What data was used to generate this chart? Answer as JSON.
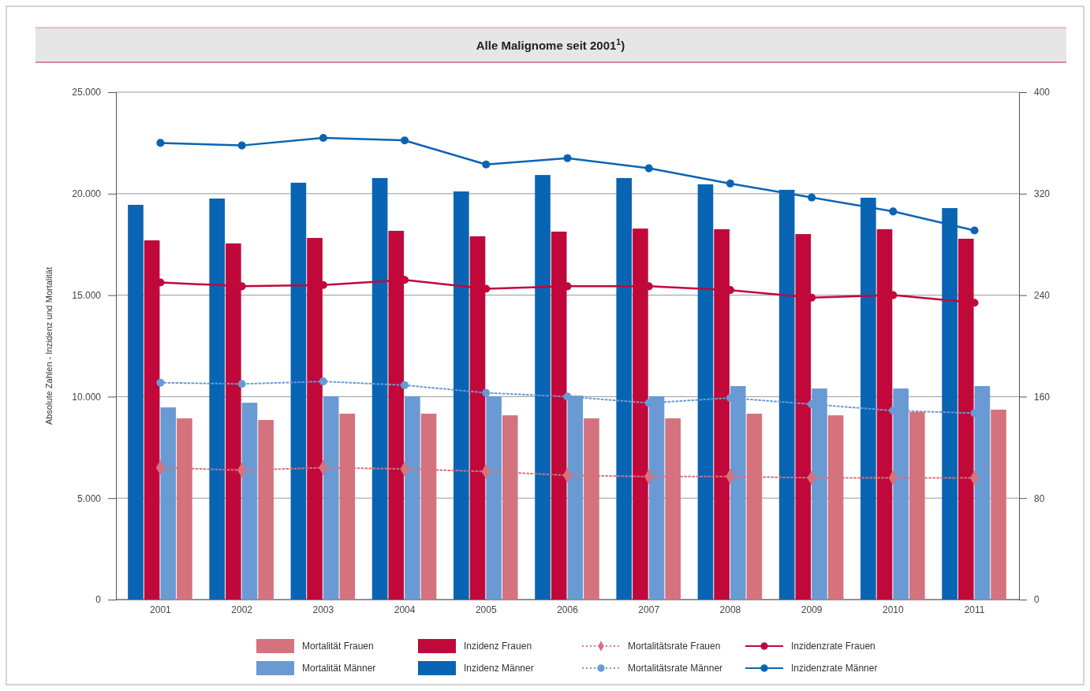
{
  "chart_data": {
    "type": "bar",
    "title": "Alle Malignome seit 2001$^{1}$)",
    "ylabel": "Absolute  Zahlen - Inzidenz und Mortalität",
    "categories": [
      "2001",
      "2002",
      "2003",
      "2004",
      "2005",
      "2006",
      "2007",
      "2008",
      "2009",
      "2010",
      "2011"
    ],
    "series": [
      {
        "name": "Inzidenz Männer",
        "color": "#0a64b4",
        "values": [
          19450,
          19760,
          20540,
          20770,
          20110,
          20920,
          20770,
          20460,
          20190,
          19800,
          19290
        ]
      },
      {
        "name": "Inzidenz Frauen",
        "color": "#c0093a",
        "values": [
          17700,
          17550,
          17820,
          18170,
          17900,
          18130,
          18280,
          18250,
          18010,
          18250,
          17780
        ]
      },
      {
        "name": "Mortalität Männer",
        "color": "#6a9ad4",
        "values": [
          9470,
          9700,
          10020,
          10020,
          10020,
          10050,
          10020,
          10520,
          10400,
          10400,
          10520
        ]
      },
      {
        "name": "Mortalität Frauen",
        "color": "#d4737e",
        "values": [
          8930,
          8850,
          9160,
          9160,
          9080,
          8930,
          8930,
          9160,
          9080,
          9240,
          9360
        ]
      },
      {
        "name": "Inzidenzrate Männer",
        "type": "line",
        "axis": "y2",
        "color": "#0a64b4",
        "marker": "circle",
        "line_style": "solid",
        "values": [
          360,
          358,
          364,
          362,
          343,
          348,
          340,
          328,
          317,
          306,
          291
        ]
      },
      {
        "name": "Inzidenzrate Frauen",
        "type": "line",
        "axis": "y2",
        "color": "#c0093a",
        "marker": "circle",
        "line_style": "solid",
        "values": [
          250,
          247,
          248,
          252,
          245,
          247,
          247,
          244,
          238,
          240,
          234
        ]
      },
      {
        "name": "Mortalitätsrate Männer",
        "type": "line",
        "axis": "y2",
        "color": "#6a9ad4",
        "marker": "circle",
        "line_style": "dotted",
        "values": [
          171,
          170,
          172,
          169,
          163,
          160,
          155,
          159,
          154,
          149,
          147
        ]
      },
      {
        "name": "Mortalitätsrate Frauen",
        "type": "line",
        "axis": "y2",
        "color": "#d4737e",
        "marker": "diamond",
        "line_style": "dotted",
        "values": [
          104,
          102,
          104,
          103,
          101,
          98,
          97,
          97,
          96,
          96,
          96
        ]
      }
    ],
    "ylim": [
      0,
      25000
    ],
    "yticks": [
      {
        "value": 0,
        "label": "0"
      },
      {
        "value": 5000,
        "label": "5.000"
      },
      {
        "value": 10000,
        "label": "10.000"
      },
      {
        "value": 15000,
        "label": "15.000"
      },
      {
        "value": 20000,
        "label": "20.000"
      },
      {
        "value": 25000,
        "label": "25.000"
      }
    ],
    "y2lim": [
      0,
      400
    ],
    "y2ticks": [
      0,
      80,
      160,
      240,
      320,
      400
    ],
    "grid": "y",
    "legend": "bottom"
  }
}
